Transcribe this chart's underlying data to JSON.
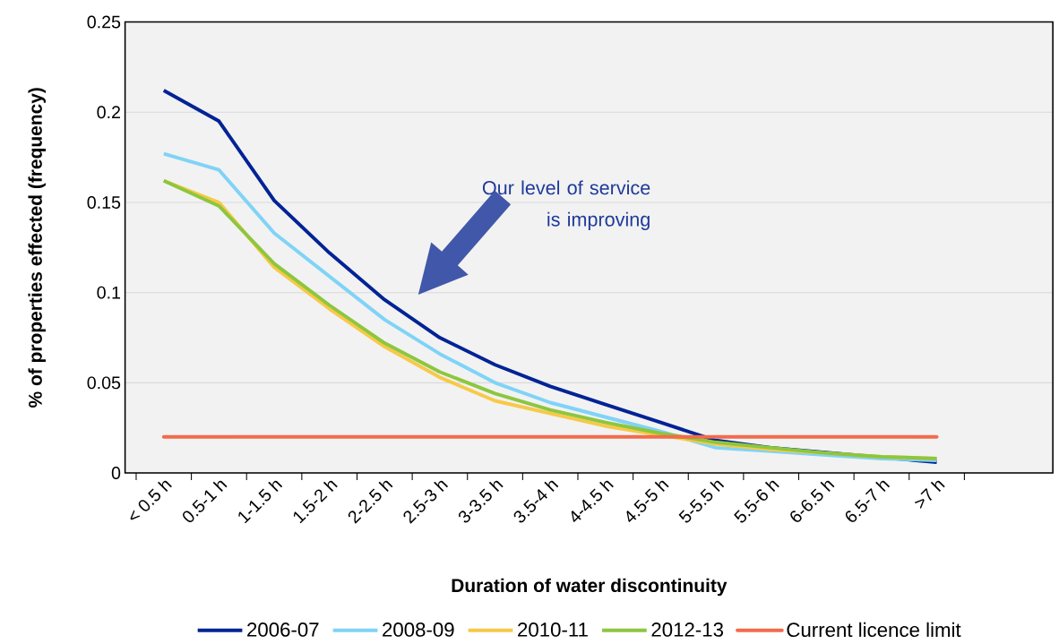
{
  "chart_data": {
    "type": "line",
    "xlabel": "Duration of water discontinuity",
    "ylabel": "% of properties effected (frequency)",
    "categories": [
      "< 0.5 h",
      "0.5-1 h",
      "1-1.5 h",
      "1.5-2 h",
      "2-2.5 h",
      "2.5-3 h",
      "3-3.5 h",
      "3.5-4 h",
      "4-4.5 h",
      "4.5-5 h",
      "5-5.5 h",
      "5.5-6 h",
      "6-6.5 h",
      "6.5-7 h",
      ">7 h"
    ],
    "series": [
      {
        "name": "2006-07",
        "color": "#002395",
        "values": [
          0.212,
          0.195,
          0.151,
          0.122,
          0.096,
          0.075,
          0.06,
          0.048,
          0.038,
          0.028,
          0.018,
          0.014,
          null,
          null,
          0.006
        ]
      },
      {
        "name": "2008-09",
        "color": "#7fd3f7",
        "values": [
          0.177,
          0.168,
          0.133,
          0.109,
          0.085,
          0.066,
          0.05,
          0.039,
          0.031,
          0.023,
          0.014,
          0.012,
          0.01,
          0.008,
          0.007
        ]
      },
      {
        "name": "2010-11",
        "color": "#f7c948",
        "values": [
          0.162,
          0.15,
          0.114,
          0.091,
          0.07,
          0.053,
          0.04,
          0.033,
          0.026,
          0.021,
          0.016,
          0.013,
          0.011,
          0.009,
          0.008
        ]
      },
      {
        "name": "2012-13",
        "color": "#8dc63f",
        "values": [
          0.162,
          0.148,
          0.116,
          0.093,
          0.072,
          0.056,
          0.044,
          0.035,
          0.028,
          0.022,
          0.017,
          0.014,
          0.011,
          0.009,
          0.008
        ]
      }
    ],
    "ref_lines": [
      {
        "axis": "y",
        "value": 0.02,
        "label": "Current licence limit",
        "color": "#f26b4a"
      }
    ],
    "annotations": [
      "Our level of service is improving"
    ],
    "ylim": [
      0,
      0.25
    ],
    "yticks": [
      0,
      0.05,
      0.1,
      0.15,
      0.2,
      0.25
    ],
    "grid": "y",
    "legend": "bottom"
  }
}
